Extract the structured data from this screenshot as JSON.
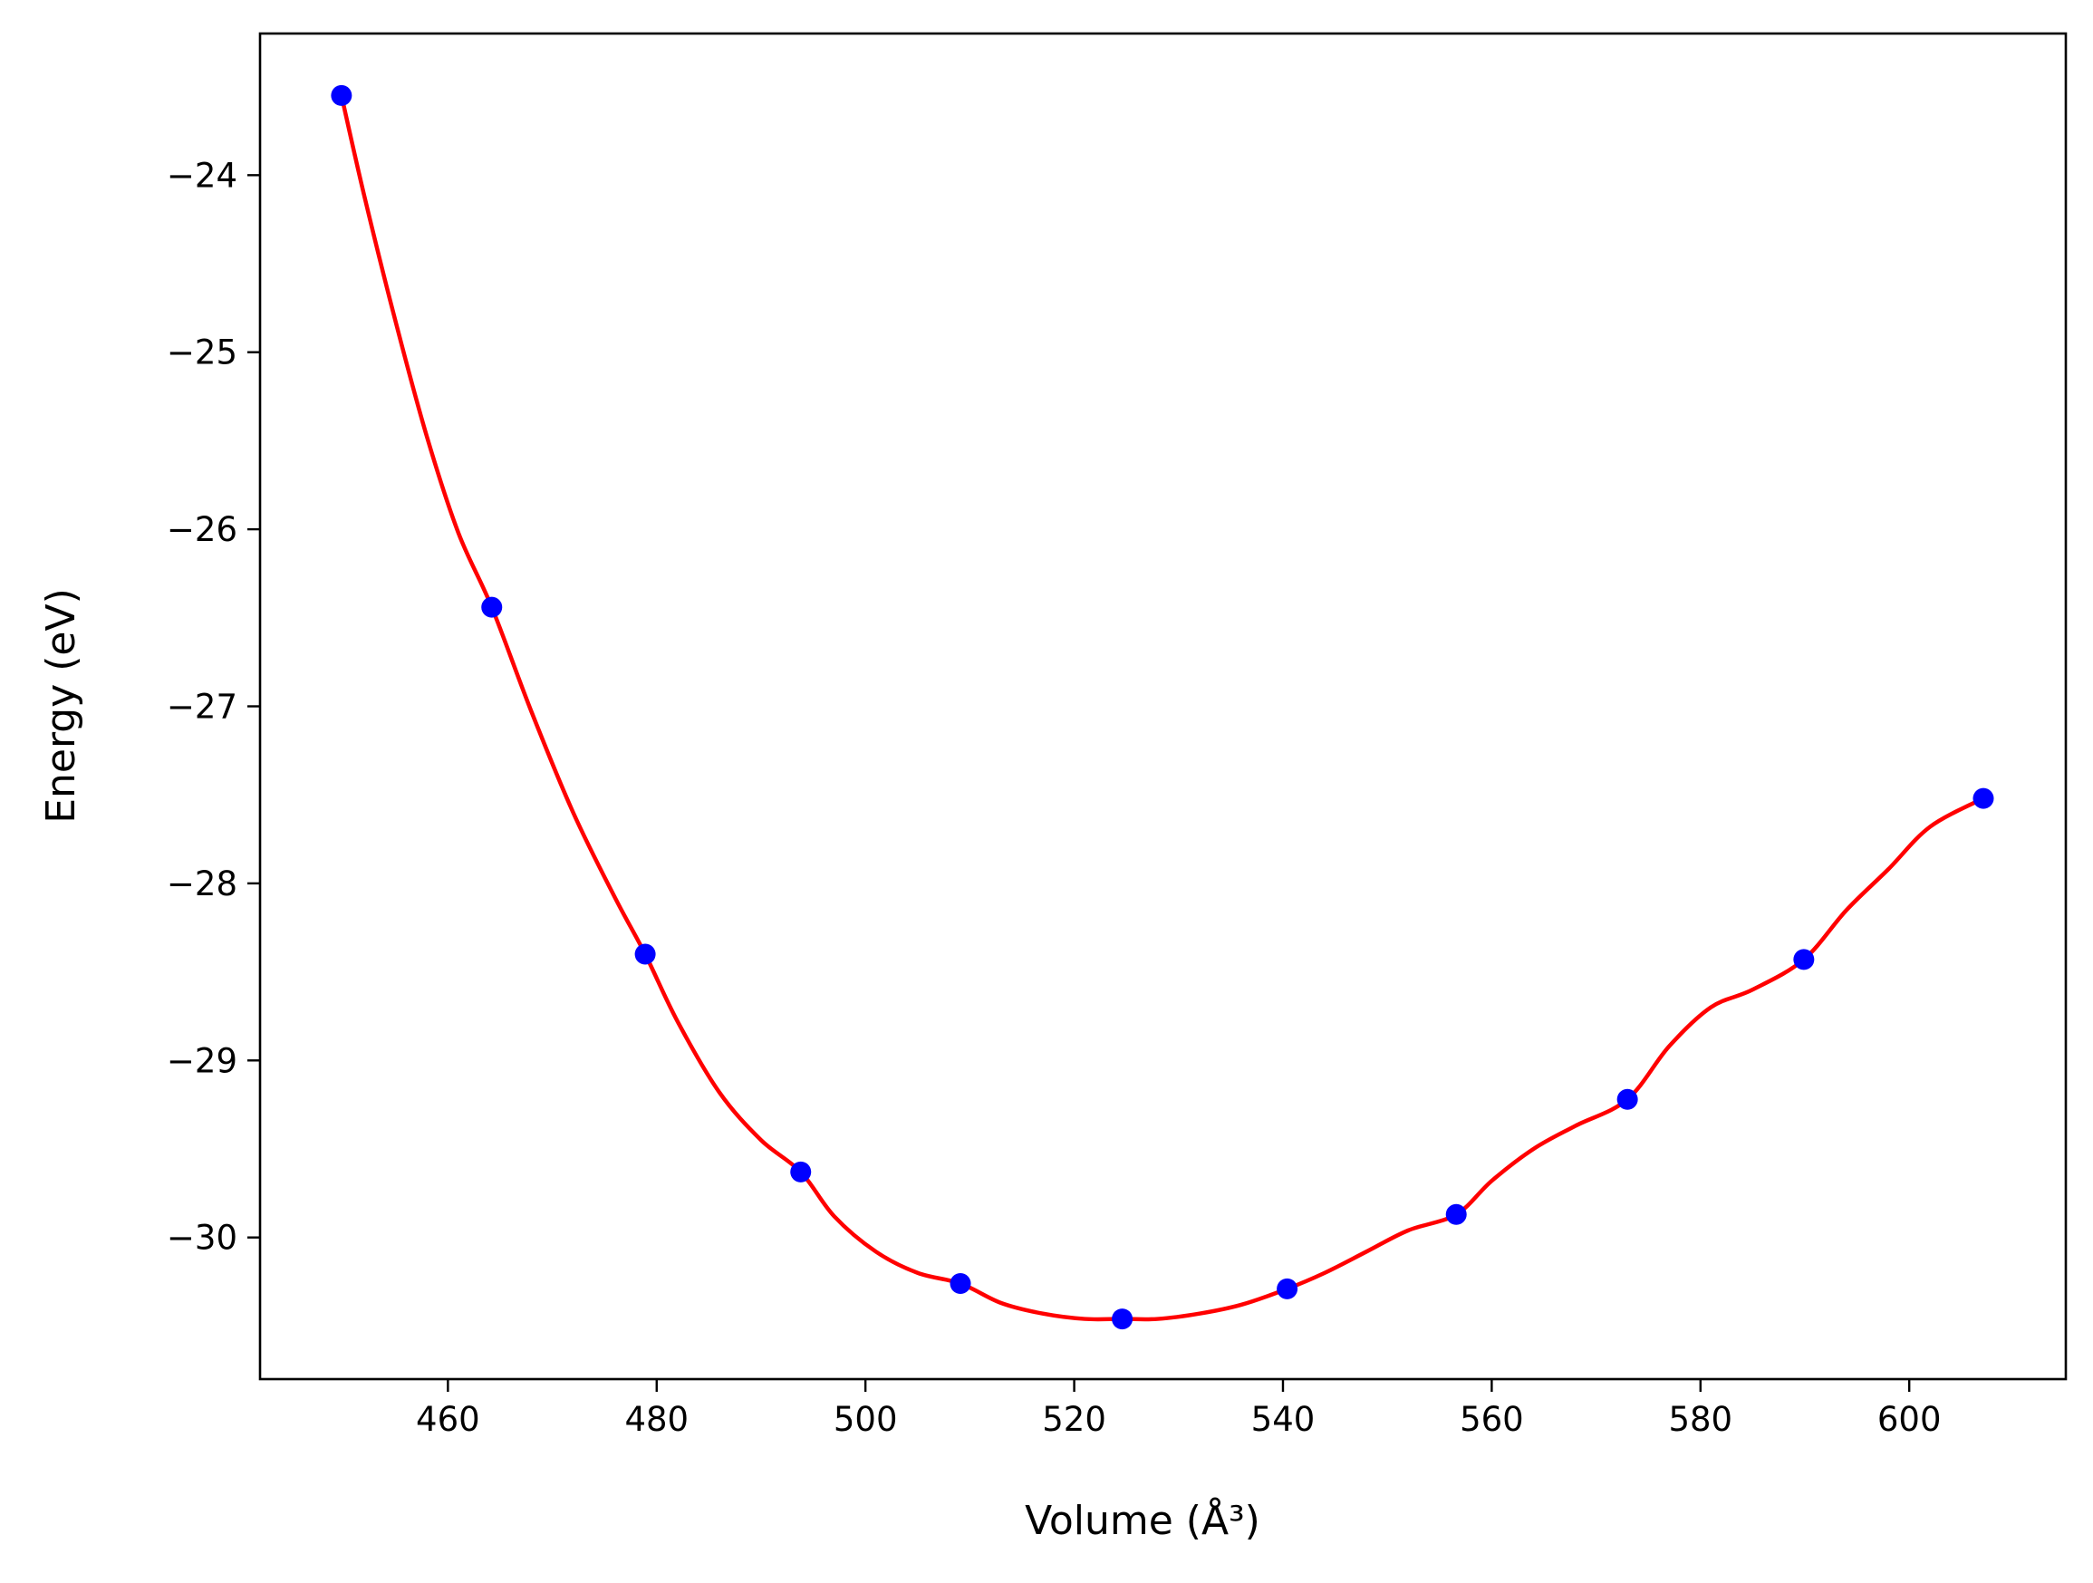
{
  "chart_data": {
    "type": "scatter",
    "title": "",
    "xlabel": "Volume (Å³)",
    "ylabel": "Energy (eV)",
    "xlim": [
      442,
      615
    ],
    "ylim": [
      -30.8,
      -23.2
    ],
    "xticks": [
      460,
      480,
      500,
      520,
      540,
      560,
      580,
      600
    ],
    "yticks": [
      -24,
      -25,
      -26,
      -27,
      -28,
      -29,
      -30
    ],
    "xtick_labels": [
      "460",
      "480",
      "500",
      "520",
      "540",
      "560",
      "580",
      "600"
    ],
    "ytick_labels": [
      "−24",
      "−25",
      "−26",
      "−27",
      "−28",
      "−29",
      "−30"
    ],
    "grid": false,
    "legend": "none",
    "series": [
      {
        "kind": "points",
        "color": "#0000ff",
        "x": [
          449.8,
          464.2,
          478.9,
          493.8,
          509.1,
          524.6,
          540.4,
          556.6,
          573.0,
          589.9,
          607.1
        ],
        "y": [
          -23.55,
          -26.44,
          -28.4,
          -29.63,
          -30.26,
          -30.46,
          -30.29,
          -29.87,
          -29.22,
          -28.43,
          -27.52
        ]
      },
      {
        "kind": "fit",
        "color": "#ff0000",
        "x": [
          449.8,
          452,
          455,
          458,
          461,
          464.2,
          468,
          472,
          476,
          478.9,
          482,
          486,
          490,
          493.8,
          497,
          501,
          505,
          509.1,
          513,
          517,
          521,
          524.6,
          528,
          532,
          536,
          540.4,
          544,
          548,
          552,
          556.6,
          560,
          564,
          568,
          573.0,
          577,
          581,
          585,
          589.9,
          594,
          598,
          602,
          607.1
        ],
        "y": [
          -23.55,
          -24.12,
          -24.83,
          -25.48,
          -26.02,
          -26.44,
          -27.03,
          -27.6,
          -28.08,
          -28.4,
          -28.78,
          -29.18,
          -29.45,
          -29.63,
          -29.88,
          -30.08,
          -30.2,
          -30.26,
          -30.37,
          -30.43,
          -30.46,
          -30.46,
          -30.46,
          -30.43,
          -30.38,
          -30.29,
          -30.2,
          -30.08,
          -29.96,
          -29.87,
          -29.68,
          -29.5,
          -29.37,
          -29.22,
          -28.92,
          -28.7,
          -28.6,
          -28.43,
          -28.15,
          -27.92,
          -27.68,
          -27.52
        ]
      }
    ]
  }
}
